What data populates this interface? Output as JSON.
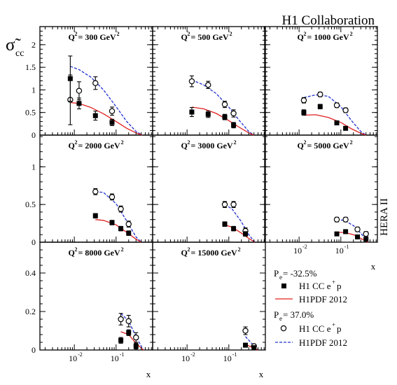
{
  "header": {
    "collaboration": "H1 Collaboration",
    "y_symbol": "σ̃",
    "y_sub": "cc",
    "side_label": "HERA II"
  },
  "colors": {
    "positron_neg_pol_model": "#e02020",
    "positron_pos_pol_model": "#2030d0",
    "marker": "#000000"
  },
  "axis_labels": {
    "x": "x"
  },
  "legend": {
    "group1_pol": "P",
    "group1_pol_sub": "e",
    "group1_pol_value": " = -32.5%",
    "group1_data": "H1 CC e",
    "group1_data_sup": "+",
    "group1_data_tail": "p",
    "group1_model": "H1PDF 2012",
    "group2_pol": "P",
    "group2_pol_sub": "e",
    "group2_pol_value": " = 37.0%",
    "group2_data": "H1 CC e",
    "group2_data_sup": "+",
    "group2_data_tail": "p",
    "group2_model": "H1PDF 2012"
  },
  "chart_data": {
    "type": "scatter",
    "x_scale": "log",
    "xlim": [
      0.0015,
      0.75
    ],
    "rows": [
      {
        "ylim": [
          0,
          2.4
        ],
        "yticks": [
          0,
          0.5,
          1,
          1.5,
          2
        ],
        "ytick_labels": [
          "0",
          "0.5",
          "1",
          "1.5",
          "2"
        ]
      },
      {
        "ylim": [
          0,
          1.42
        ],
        "yticks": [
          0,
          0.5,
          1
        ],
        "ytick_labels": [
          "0",
          "0.5",
          "1"
        ]
      },
      {
        "ylim": [
          0,
          0.56
        ],
        "yticks": [
          0,
          0.2,
          0.4
        ],
        "ytick_labels": [
          "0",
          "0.2",
          "0.4"
        ]
      }
    ],
    "xticks": [
      0.01,
      0.1
    ],
    "xtick_labels": [
      "10",
      "10"
    ],
    "xtick_exps": [
      "-2",
      "-1"
    ],
    "panels": [
      {
        "row": 0,
        "col": 0,
        "q2_label": "Q",
        "q2_value": " = 300 GeV",
        "neg_data": [
          [
            0.008,
            1.25,
            0.5
          ],
          [
            0.013,
            0.7,
            0.12
          ],
          [
            0.032,
            0.43,
            0.1
          ],
          [
            0.08,
            0.28,
            0.07
          ]
        ],
        "pos_data": [
          [
            0.008,
            0.78,
            0.55
          ],
          [
            0.013,
            0.98,
            0.2
          ],
          [
            0.032,
            1.15,
            0.14
          ],
          [
            0.08,
            0.53,
            0.09
          ]
        ],
        "neg_curve": [
          [
            0.008,
            0.72
          ],
          [
            0.013,
            0.7
          ],
          [
            0.025,
            0.61
          ],
          [
            0.05,
            0.47
          ],
          [
            0.1,
            0.3
          ],
          [
            0.18,
            0.15
          ],
          [
            0.3,
            0.05
          ],
          [
            0.42,
            0.0
          ]
        ],
        "pos_curve": [
          [
            0.008,
            1.52
          ],
          [
            0.013,
            1.45
          ],
          [
            0.025,
            1.28
          ],
          [
            0.05,
            1.0
          ],
          [
            0.1,
            0.63
          ],
          [
            0.18,
            0.3
          ],
          [
            0.3,
            0.08
          ],
          [
            0.42,
            0.0
          ]
        ]
      },
      {
        "row": 0,
        "col": 1,
        "q2_label": "Q",
        "q2_value": " = 500 GeV",
        "neg_data": [
          [
            0.013,
            0.51,
            0.1
          ],
          [
            0.032,
            0.46,
            0.07
          ],
          [
            0.08,
            0.4,
            0.06
          ],
          [
            0.13,
            0.22,
            0.06
          ]
        ],
        "pos_data": [
          [
            0.013,
            1.19,
            0.12
          ],
          [
            0.032,
            1.11,
            0.08
          ],
          [
            0.08,
            0.68,
            0.07
          ],
          [
            0.13,
            0.48,
            0.08
          ]
        ],
        "neg_curve": [
          [
            0.013,
            0.62
          ],
          [
            0.025,
            0.58
          ],
          [
            0.05,
            0.48
          ],
          [
            0.1,
            0.32
          ],
          [
            0.18,
            0.17
          ],
          [
            0.3,
            0.05
          ],
          [
            0.4,
            0.0
          ]
        ],
        "pos_curve": [
          [
            0.013,
            1.22
          ],
          [
            0.025,
            1.11
          ],
          [
            0.05,
            0.92
          ],
          [
            0.1,
            0.62
          ],
          [
            0.18,
            0.32
          ],
          [
            0.3,
            0.08
          ],
          [
            0.4,
            0.0
          ]
        ]
      },
      {
        "row": 0,
        "col": 2,
        "q2_label": "Q",
        "q2_value": " = 1000 GeV",
        "neg_data": [
          [
            0.013,
            0.5,
            0.06
          ],
          [
            0.032,
            0.63,
            0.05
          ],
          [
            0.08,
            0.27,
            0.04
          ],
          [
            0.13,
            0.15,
            0.04
          ]
        ],
        "pos_data": [
          [
            0.013,
            0.77,
            0.06
          ],
          [
            0.032,
            0.9,
            0.05
          ],
          [
            0.08,
            0.66,
            0.05
          ],
          [
            0.13,
            0.55,
            0.05
          ]
        ],
        "neg_curve": [
          [
            0.013,
            0.44
          ],
          [
            0.025,
            0.45
          ],
          [
            0.05,
            0.39
          ],
          [
            0.1,
            0.28
          ],
          [
            0.18,
            0.14
          ],
          [
            0.3,
            0.04
          ],
          [
            0.4,
            0.0
          ]
        ],
        "pos_curve": [
          [
            0.013,
            0.83
          ],
          [
            0.025,
            0.89
          ],
          [
            0.05,
            0.86
          ],
          [
            0.1,
            0.63
          ],
          [
            0.18,
            0.32
          ],
          [
            0.3,
            0.08
          ],
          [
            0.4,
            0.0
          ]
        ]
      },
      {
        "row": 1,
        "col": 0,
        "q2_label": "Q",
        "q2_value": " = 2000 GeV",
        "neg_data": [
          [
            0.032,
            0.35,
            0.03
          ],
          [
            0.08,
            0.26,
            0.03
          ],
          [
            0.13,
            0.18,
            0.03
          ],
          [
            0.2,
            0.12,
            0.03
          ]
        ],
        "pos_data": [
          [
            0.032,
            0.67,
            0.04
          ],
          [
            0.08,
            0.6,
            0.04
          ],
          [
            0.13,
            0.44,
            0.04
          ],
          [
            0.2,
            0.24,
            0.04
          ]
        ],
        "neg_curve": [
          [
            0.032,
            0.3
          ],
          [
            0.05,
            0.29
          ],
          [
            0.1,
            0.23
          ],
          [
            0.18,
            0.13
          ],
          [
            0.3,
            0.04
          ],
          [
            0.4,
            0.0
          ]
        ],
        "pos_curve": [
          [
            0.032,
            0.67
          ],
          [
            0.05,
            0.66
          ],
          [
            0.1,
            0.51
          ],
          [
            0.18,
            0.28
          ],
          [
            0.3,
            0.07
          ],
          [
            0.4,
            0.0
          ]
        ]
      },
      {
        "row": 1,
        "col": 1,
        "q2_label": "Q",
        "q2_value": " = 3000 GeV",
        "neg_data": [
          [
            0.08,
            0.24,
            0.03
          ],
          [
            0.13,
            0.18,
            0.03
          ],
          [
            0.25,
            0.11,
            0.03
          ]
        ],
        "pos_data": [
          [
            0.08,
            0.5,
            0.04
          ],
          [
            0.13,
            0.5,
            0.04
          ],
          [
            0.25,
            0.15,
            0.04
          ]
        ],
        "neg_curve": [
          [
            0.08,
            0.23
          ],
          [
            0.12,
            0.2
          ],
          [
            0.2,
            0.12
          ],
          [
            0.3,
            0.05
          ],
          [
            0.42,
            0.0
          ]
        ],
        "pos_curve": [
          [
            0.08,
            0.5
          ],
          [
            0.12,
            0.44
          ],
          [
            0.2,
            0.27
          ],
          [
            0.3,
            0.1
          ],
          [
            0.42,
            0.0
          ]
        ]
      },
      {
        "row": 1,
        "col": 2,
        "q2_label": "Q",
        "q2_value": " = 5000 GeV",
        "neg_data": [
          [
            0.08,
            0.11,
            0.02
          ],
          [
            0.13,
            0.14,
            0.02
          ],
          [
            0.25,
            0.07,
            0.02
          ],
          [
            0.4,
            0.04,
            0.02
          ]
        ],
        "pos_data": [
          [
            0.08,
            0.3,
            0.03
          ],
          [
            0.13,
            0.3,
            0.03
          ],
          [
            0.25,
            0.17,
            0.03
          ],
          [
            0.4,
            0.11,
            0.03
          ]
        ],
        "neg_curve": [
          [
            0.08,
            0.13
          ],
          [
            0.12,
            0.13
          ],
          [
            0.2,
            0.1
          ],
          [
            0.3,
            0.05
          ],
          [
            0.45,
            0.0
          ]
        ],
        "pos_curve": [
          [
            0.08,
            0.3
          ],
          [
            0.12,
            0.29
          ],
          [
            0.2,
            0.22
          ],
          [
            0.3,
            0.12
          ],
          [
            0.45,
            0.0
          ]
        ]
      },
      {
        "row": 2,
        "col": 0,
        "q2_label": "Q",
        "q2_value": " = 8000 GeV",
        "neg_data": [
          [
            0.13,
            0.05,
            0.015
          ],
          [
            0.2,
            0.09,
            0.015
          ],
          [
            0.3,
            0.02,
            0.015
          ]
        ],
        "pos_data": [
          [
            0.13,
            0.16,
            0.03
          ],
          [
            0.2,
            0.15,
            0.03
          ],
          [
            0.3,
            0.065,
            0.025
          ]
        ],
        "neg_curve": [
          [
            0.13,
            0.095
          ],
          [
            0.2,
            0.08
          ],
          [
            0.3,
            0.035
          ],
          [
            0.45,
            0.0
          ]
        ],
        "pos_curve": [
          [
            0.13,
            0.19
          ],
          [
            0.2,
            0.15
          ],
          [
            0.3,
            0.07
          ],
          [
            0.45,
            0.0
          ]
        ]
      },
      {
        "row": 2,
        "col": 1,
        "q2_label": "Q",
        "q2_value": " = 15000 GeV",
        "neg_data": [
          [
            0.25,
            0.025,
            0.01
          ],
          [
            0.4,
            0.012,
            0.01
          ]
        ],
        "pos_data": [
          [
            0.25,
            0.1,
            0.02
          ],
          [
            0.4,
            0.02,
            0.01
          ]
        ],
        "neg_curve": [
          [
            0.25,
            0.03
          ],
          [
            0.35,
            0.015
          ],
          [
            0.5,
            0.0
          ]
        ],
        "pos_curve": [
          [
            0.25,
            0.07
          ],
          [
            0.35,
            0.035
          ],
          [
            0.5,
            0.0
          ]
        ]
      }
    ]
  }
}
